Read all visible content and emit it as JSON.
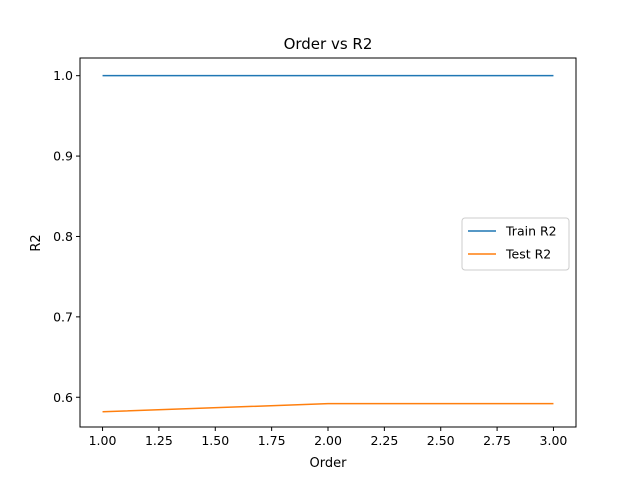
{
  "chart_data": {
    "type": "line",
    "title": "Order vs R2",
    "xlabel": "Order",
    "ylabel": "R2",
    "xlim": [
      0.9,
      3.1
    ],
    "ylim": [
      0.563,
      1.022
    ],
    "xticks": [
      1.0,
      1.25,
      1.5,
      1.75,
      2.0,
      2.25,
      2.5,
      2.75,
      3.0
    ],
    "xtick_labels": [
      "1.00",
      "1.25",
      "1.50",
      "1.75",
      "2.00",
      "2.25",
      "2.50",
      "2.75",
      "3.00"
    ],
    "yticks": [
      0.6,
      0.7,
      0.8,
      0.9,
      1.0
    ],
    "ytick_labels": [
      "0.6",
      "0.7",
      "0.8",
      "0.9",
      "1.0"
    ],
    "grid": false,
    "legend_position": "center-right",
    "series": [
      {
        "name": "Train R2",
        "color": "#1f77b4",
        "x": [
          1,
          2,
          3
        ],
        "y": [
          1.0,
          1.0,
          1.0
        ]
      },
      {
        "name": "Test R2",
        "color": "#ff7f0e",
        "x": [
          1,
          2,
          3
        ],
        "y": [
          0.582,
          0.592,
          0.592
        ]
      }
    ]
  }
}
